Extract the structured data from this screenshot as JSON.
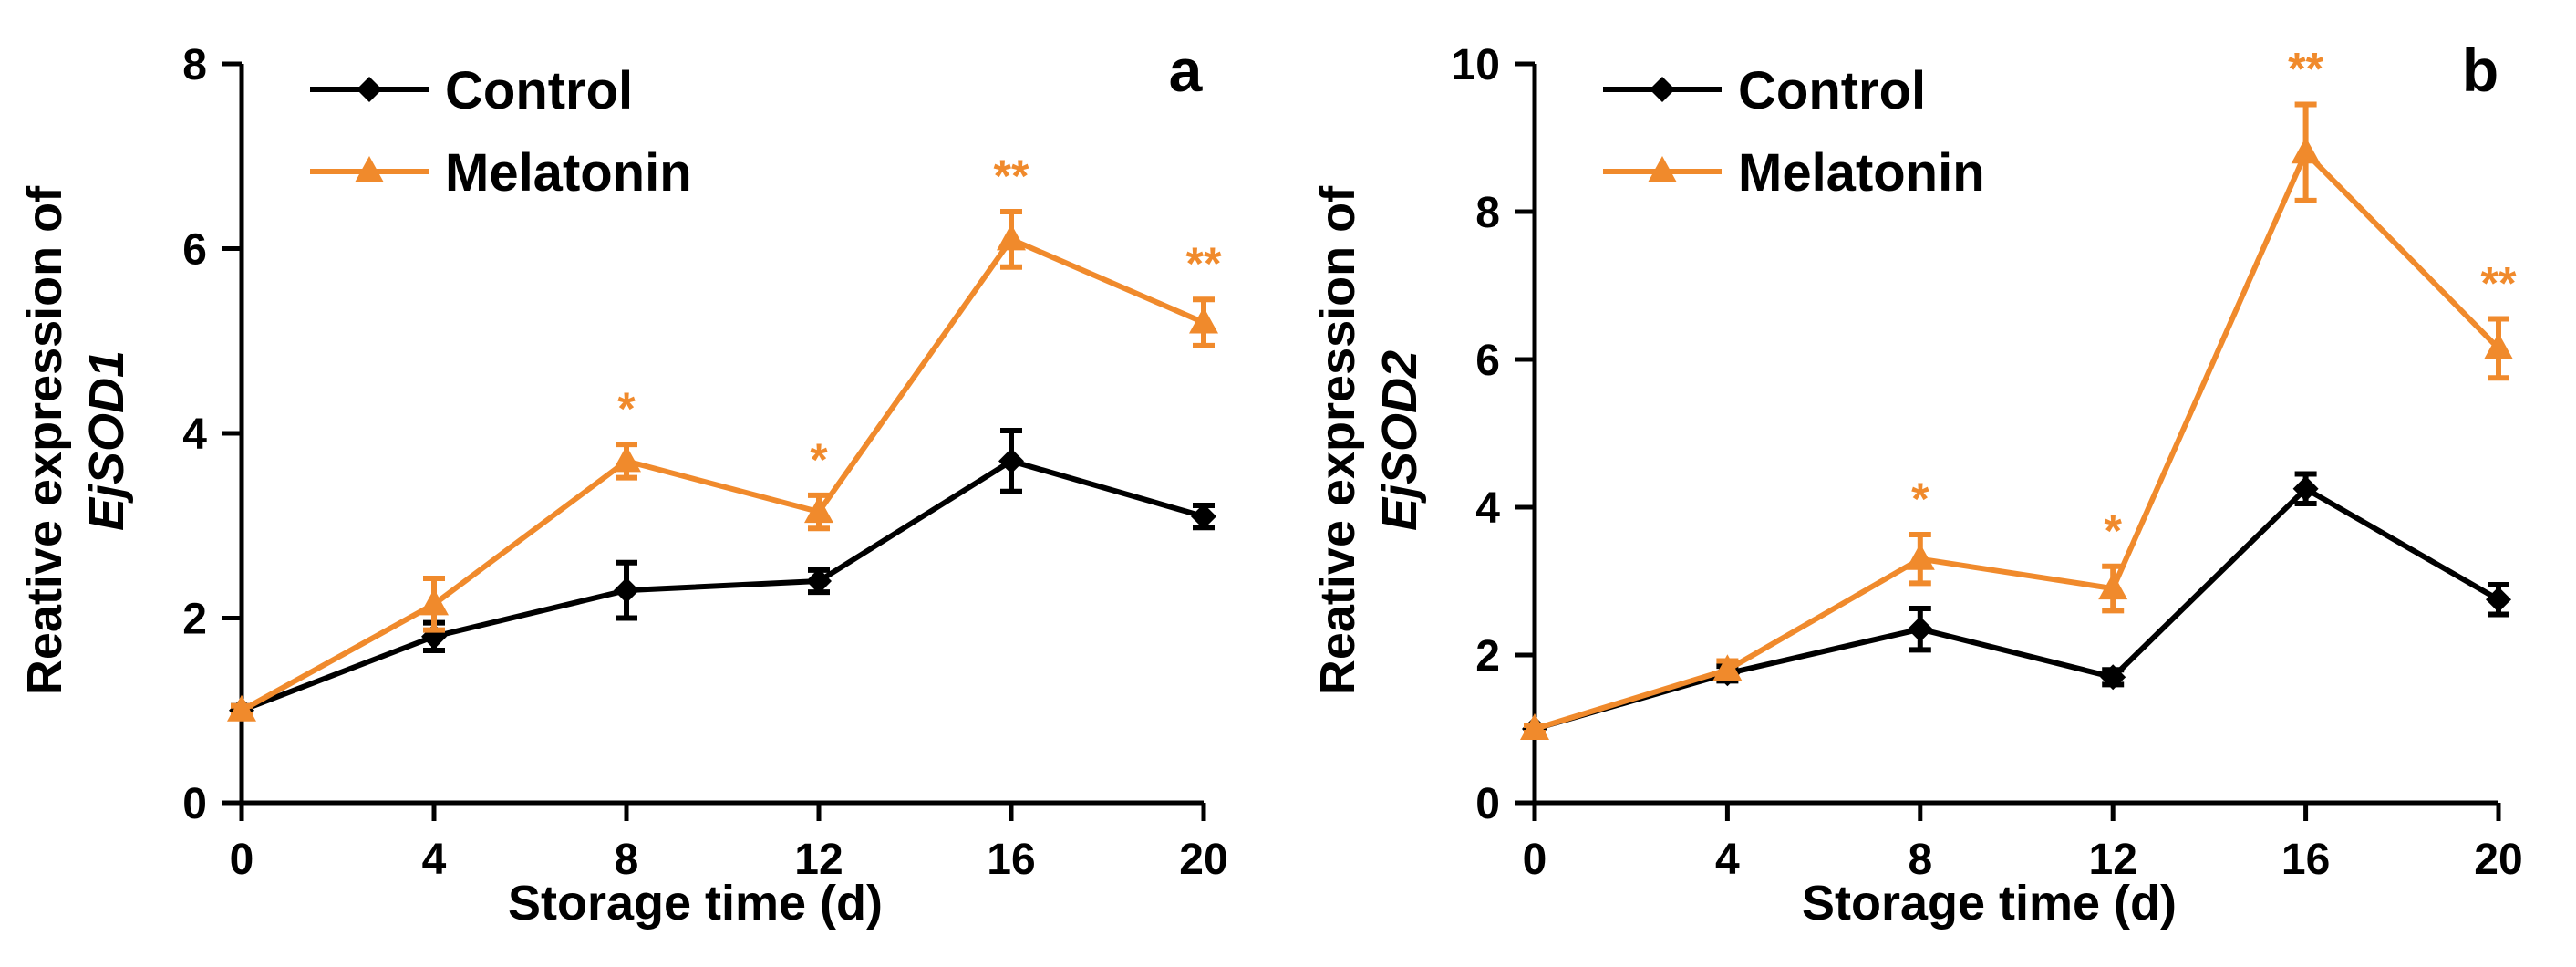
{
  "colors": {
    "control": "#000000",
    "melatonin": "#f08a2c"
  },
  "chart_data": [
    {
      "type": "line",
      "panel": "a",
      "title": "",
      "xlabel": "Storage time (d)",
      "ylabel_line1": "Reative expression of",
      "ylabel_line2": "EjSOD1",
      "x": [
        0,
        4,
        8,
        12,
        16,
        20
      ],
      "x_ticks": [
        "0",
        "4",
        "8",
        "12",
        "16",
        "20"
      ],
      "xlim": [
        0,
        20
      ],
      "ylim": [
        0,
        8
      ],
      "y_ticks": [
        "0",
        "2",
        "4",
        "6",
        "8"
      ],
      "legend": "top-left",
      "series": [
        {
          "name": "Control",
          "color": "#000000",
          "marker": "diamond",
          "values": [
            1.0,
            1.8,
            2.3,
            2.4,
            3.7,
            3.1
          ],
          "errors": [
            0.05,
            0.15,
            0.3,
            0.12,
            0.33,
            0.12
          ]
        },
        {
          "name": "Melatonin",
          "color": "#f08a2c",
          "marker": "triangle",
          "values": [
            1.0,
            2.15,
            3.7,
            3.15,
            6.1,
            5.2
          ],
          "errors": [
            0.05,
            0.28,
            0.18,
            0.18,
            0.3,
            0.25
          ]
        }
      ],
      "significance": [
        {
          "x": 8,
          "label": "*"
        },
        {
          "x": 12,
          "label": "*"
        },
        {
          "x": 16,
          "label": "**"
        },
        {
          "x": 20,
          "label": "**"
        }
      ]
    },
    {
      "type": "line",
      "panel": "b",
      "title": "",
      "xlabel": "Storage time (d)",
      "ylabel_line1": "Reative expression of",
      "ylabel_line2": "EjSOD2",
      "x": [
        0,
        4,
        8,
        12,
        16,
        20
      ],
      "x_ticks": [
        "0",
        "4",
        "8",
        "12",
        "16",
        "20"
      ],
      "xlim": [
        0,
        20
      ],
      "ylim": [
        0,
        10
      ],
      "y_ticks": [
        "0",
        "2",
        "4",
        "6",
        "8",
        "10"
      ],
      "legend": "top-left",
      "series": [
        {
          "name": "Control",
          "color": "#000000",
          "marker": "diamond",
          "values": [
            1.0,
            1.75,
            2.35,
            1.7,
            4.25,
            2.75
          ],
          "errors": [
            0.05,
            0.1,
            0.28,
            0.1,
            0.2,
            0.2
          ]
        },
        {
          "name": "Melatonin",
          "color": "#f08a2c",
          "marker": "triangle",
          "values": [
            1.0,
            1.8,
            3.3,
            2.9,
            8.8,
            6.15
          ],
          "errors": [
            0.05,
            0.12,
            0.33,
            0.3,
            0.65,
            0.4
          ]
        }
      ],
      "significance": [
        {
          "x": 8,
          "label": "*"
        },
        {
          "x": 12,
          "label": "*"
        },
        {
          "x": 16,
          "label": "**"
        },
        {
          "x": 20,
          "label": "**"
        }
      ]
    }
  ]
}
